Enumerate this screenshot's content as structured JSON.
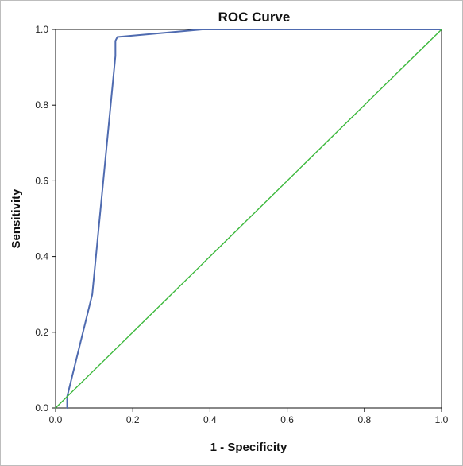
{
  "chart_data": {
    "type": "line",
    "title": "ROC Curve",
    "xlabel": "1 - Specificity",
    "ylabel": "Sensitivity",
    "xlim": [
      0,
      1
    ],
    "ylim": [
      0,
      1
    ],
    "x_ticks": [
      "0.0",
      "0.2",
      "0.4",
      "0.6",
      "0.8",
      "1.0"
    ],
    "y_ticks": [
      "0.0",
      "0.2",
      "0.4",
      "0.6",
      "0.8",
      "1.0"
    ],
    "grid": false,
    "legend": "none",
    "series": [
      {
        "color": "#4f6bb0",
        "x": [
          0.03,
          0.03,
          0.095,
          0.155,
          0.155,
          0.16,
          0.38,
          1.0
        ],
        "y": [
          0.0,
          0.03,
          0.3,
          0.93,
          0.97,
          0.98,
          1.0,
          1.0
        ]
      },
      {
        "color": "#3cb83c",
        "x": [
          0.0,
          1.0
        ],
        "y": [
          0.0,
          1.0
        ]
      }
    ]
  }
}
